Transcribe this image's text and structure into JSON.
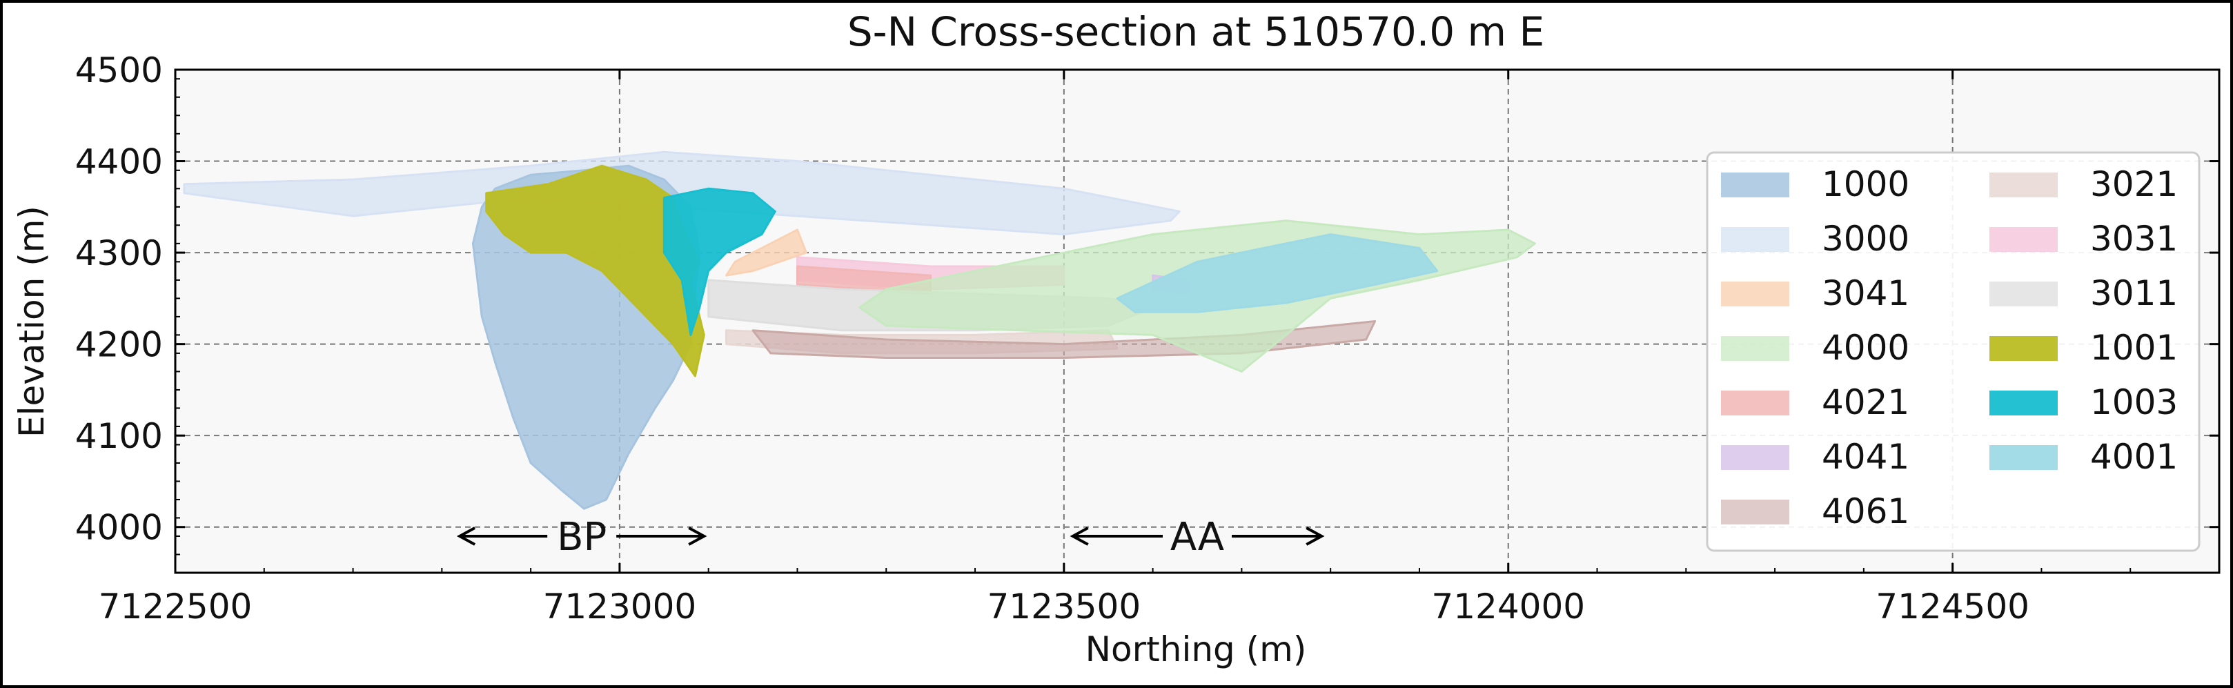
{
  "chart_data": {
    "type": "area",
    "title": "S-N Cross-section at 510570.0 m E",
    "xlabel": "Northing (m)",
    "ylabel": "Elevation (m)",
    "xlim": [
      7122500,
      7124800
    ],
    "ylim": [
      3950,
      4500
    ],
    "xticks": [
      7122500,
      7123000,
      7123500,
      7124000,
      7124500
    ],
    "yticks": [
      4000,
      4100,
      4200,
      4300,
      4400,
      4500
    ],
    "grid": true,
    "legend_placement": "right",
    "legend_columns": 2,
    "series": [
      {
        "name": "1000",
        "color": "#a6c4df",
        "opacity": 0.85,
        "x": [
          7122860,
          7122900,
          7122960,
          7123010,
          7123050,
          7123080,
          7123090,
          7123085,
          7123080,
          7123060,
          7123040,
          7123010,
          7122985,
          7122960,
          7122935,
          7122900,
          7122880,
          7122860,
          7122845,
          7122840,
          7122835,
          7122845
        ],
        "y": [
          4370,
          4385,
          4390,
          4395,
          4380,
          4350,
          4300,
          4260,
          4200,
          4160,
          4130,
          4080,
          4030,
          4020,
          4040,
          4070,
          4120,
          4180,
          4230,
          4270,
          4310,
          4350
        ]
      },
      {
        "name": "3000",
        "color": "#d6e2f3",
        "opacity": 0.75,
        "x": [
          7122510,
          7122700,
          7122900,
          7123050,
          7123200,
          7123350,
          7123500,
          7123630,
          7123620,
          7123500,
          7123350,
          7123200,
          7123050,
          7122900,
          7122700,
          7122510
        ],
        "y": [
          4375,
          4380,
          4395,
          4410,
          4400,
          4385,
          4370,
          4345,
          4335,
          4320,
          4330,
          4340,
          4350,
          4360,
          4340,
          4365
        ]
      },
      {
        "name": "3041",
        "color": "#f9d2b3",
        "opacity": 0.8,
        "x": [
          7123130,
          7123200,
          7123210,
          7123150,
          7123120
        ],
        "y": [
          4290,
          4325,
          4300,
          4280,
          4275
        ]
      },
      {
        "name": "4000",
        "color": "#c7e9c0",
        "opacity": 0.75,
        "x": [
          7123300,
          7123450,
          7123600,
          7123750,
          7123900,
          7124000,
          7124030,
          7124010,
          7123900,
          7123800,
          7123750,
          7123700,
          7123650,
          7123600,
          7123450,
          7123300,
          7123270
        ],
        "y": [
          4260,
          4290,
          4320,
          4335,
          4320,
          4325,
          4310,
          4295,
          4270,
          4250,
          4210,
          4170,
          4190,
          4210,
          4215,
          4220,
          4240
        ]
      },
      {
        "name": "4021",
        "color": "#f2b6b6",
        "opacity": 0.85,
        "x": [
          7123200,
          7123350,
          7123350,
          7123200
        ],
        "y": [
          4285,
          4275,
          4255,
          4265
        ]
      },
      {
        "name": "4041",
        "color": "#d8c4ea",
        "opacity": 0.85,
        "x": [
          7123600,
          7123640,
          7123640,
          7123600
        ],
        "y": [
          4275,
          4270,
          4255,
          4260
        ]
      },
      {
        "name": "4061",
        "color": "#c9a9a6",
        "opacity": 0.6,
        "x": [
          7123150,
          7123300,
          7123500,
          7123700,
          7123850,
          7123840,
          7123700,
          7123500,
          7123300,
          7123170
        ],
        "y": [
          4215,
          4205,
          4200,
          4210,
          4225,
          4205,
          4190,
          4185,
          4185,
          4190
        ]
      },
      {
        "name": "3021",
        "color": "#e7d8d4",
        "opacity": 0.85,
        "x": [
          7123120,
          7123250,
          7123400,
          7123550,
          7123560,
          7123400,
          7123250,
          7123120
        ],
        "y": [
          4215,
          4210,
          4210,
          4215,
          4195,
          4190,
          4190,
          4200
        ]
      },
      {
        "name": "3031",
        "color": "#f6c9dc",
        "opacity": 0.85,
        "x": [
          7123200,
          7123350,
          7123500,
          7123500,
          7123350,
          7123200
        ],
        "y": [
          4295,
          4285,
          4285,
          4265,
          4260,
          4270
        ]
      },
      {
        "name": "3011",
        "color": "#dedede",
        "opacity": 0.75,
        "x": [
          7123100,
          7123250,
          7123400,
          7123550,
          7123600,
          7123550,
          7123400,
          7123250,
          7123100
        ],
        "y": [
          4270,
          4260,
          4255,
          4250,
          4240,
          4220,
          4215,
          4215,
          4230
        ]
      },
      {
        "name": "1001",
        "color": "#bcbd22",
        "opacity": 0.95,
        "x": [
          7122850,
          7122920,
          7122980,
          7123030,
          7123060,
          7123070,
          7123090,
          7123080,
          7123095,
          7123085,
          7123060,
          7123040,
          7123020,
          7122980,
          7122940,
          7122900,
          7122870,
          7122850
        ],
        "y": [
          4365,
          4375,
          4395,
          4380,
          4360,
          4330,
          4290,
          4270,
          4210,
          4165,
          4200,
          4220,
          4240,
          4280,
          4300,
          4300,
          4320,
          4345
        ]
      },
      {
        "name": "1003",
        "color": "#17becf",
        "opacity": 0.95,
        "x": [
          7123050,
          7123100,
          7123150,
          7123175,
          7123160,
          7123120,
          7123100,
          7123090,
          7123080,
          7123070,
          7123050
        ],
        "y": [
          4360,
          4370,
          4365,
          4345,
          4320,
          4300,
          4280,
          4240,
          4210,
          4270,
          4300
        ]
      },
      {
        "name": "4001",
        "color": "#9edae5",
        "opacity": 0.95,
        "x": [
          7123560,
          7123650,
          7123800,
          7123900,
          7123920,
          7123850,
          7123750,
          7123650,
          7123580
        ],
        "y": [
          4250,
          4290,
          4320,
          4305,
          4280,
          4265,
          4245,
          4235,
          4235
        ]
      }
    ],
    "annotations": [
      {
        "text": "BP",
        "from": 7122820,
        "to": 7123095,
        "y": 3990
      },
      {
        "text": "AA",
        "from": 7123510,
        "to": 7123790,
        "y": 3990
      }
    ]
  }
}
